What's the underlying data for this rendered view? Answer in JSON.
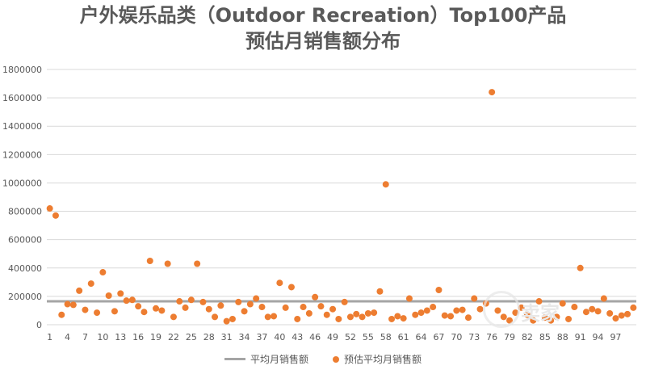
{
  "title": {
    "line1": "户外娱乐品类（Outdoor Recreation）Top100产品",
    "line2": "预估月销售额分布"
  },
  "legend": {
    "avg_label": "平均月销售额",
    "est_label": "预估平均月销售额"
  },
  "watermark": {
    "text": "卖家"
  },
  "colors": {
    "points": "#ed7d31",
    "avg_line": "#a5a5a5",
    "grid": "#d9d9d9"
  },
  "chart_data": {
    "type": "scatter",
    "title": "户外娱乐品类（Outdoor Recreation）Top100产品 预估月销售额分布",
    "ylim": [
      0,
      1800000
    ],
    "yticks": [
      "0",
      "200000",
      "400000",
      "600000",
      "800000",
      "1000000",
      "1200000",
      "1400000",
      "1600000",
      "1800000"
    ],
    "xticks": [
      1,
      4,
      7,
      10,
      13,
      16,
      19,
      22,
      25,
      28,
      31,
      34,
      37,
      40,
      43,
      46,
      49,
      52,
      55,
      58,
      61,
      64,
      67,
      70,
      73,
      76,
      79,
      82,
      85,
      88,
      91,
      94,
      97
    ],
    "grid": true,
    "legend_position": "bottom",
    "series": [
      {
        "name": "平均月销售额",
        "kind": "line",
        "value": 165000
      },
      {
        "name": "预估平均月销售额",
        "kind": "scatter",
        "x": [
          1,
          2,
          3,
          4,
          5,
          6,
          7,
          8,
          9,
          10,
          11,
          12,
          13,
          14,
          15,
          16,
          17,
          18,
          19,
          20,
          21,
          22,
          23,
          24,
          25,
          26,
          27,
          28,
          29,
          30,
          31,
          32,
          33,
          34,
          35,
          36,
          37,
          38,
          39,
          40,
          41,
          42,
          43,
          44,
          45,
          46,
          47,
          48,
          49,
          50,
          51,
          52,
          53,
          54,
          55,
          56,
          57,
          58,
          59,
          60,
          61,
          62,
          63,
          64,
          65,
          66,
          67,
          68,
          69,
          70,
          71,
          72,
          73,
          74,
          75,
          76,
          77,
          78,
          79,
          80,
          81,
          82,
          83,
          84,
          85,
          86,
          87,
          88,
          89,
          90,
          91,
          92,
          93,
          94,
          95,
          96,
          97,
          98,
          99,
          100
        ],
        "y": [
          820000,
          770000,
          70000,
          145000,
          140000,
          240000,
          105000,
          290000,
          85000,
          370000,
          205000,
          95000,
          220000,
          170000,
          175000,
          130000,
          90000,
          450000,
          115000,
          100000,
          430000,
          55000,
          165000,
          120000,
          175000,
          430000,
          160000,
          110000,
          55000,
          135000,
          25000,
          40000,
          160000,
          95000,
          145000,
          185000,
          125000,
          55000,
          60000,
          295000,
          120000,
          265000,
          40000,
          125000,
          80000,
          195000,
          130000,
          70000,
          110000,
          40000,
          160000,
          55000,
          75000,
          55000,
          80000,
          85000,
          235000,
          990000,
          40000,
          60000,
          45000,
          185000,
          70000,
          85000,
          100000,
          125000,
          245000,
          65000,
          60000,
          100000,
          105000,
          50000,
          185000,
          110000,
          150000,
          1640000,
          100000,
          55000,
          30000,
          85000,
          120000,
          70000,
          30000,
          165000,
          50000,
          30000,
          55000,
          150000,
          40000,
          125000,
          400000,
          90000,
          110000,
          95000,
          185000,
          80000,
          45000,
          65000,
          75000,
          120000
        ]
      }
    ]
  }
}
